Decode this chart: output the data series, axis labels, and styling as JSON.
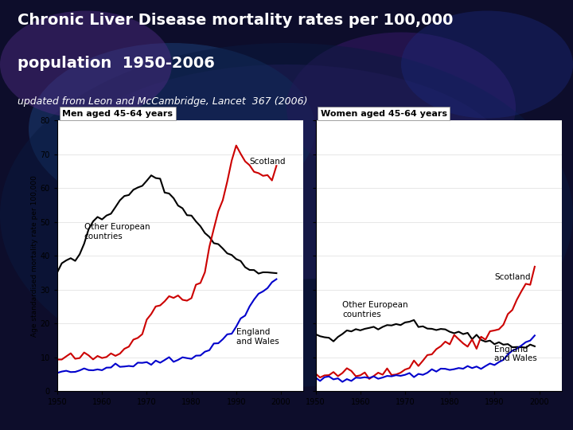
{
  "title_line1": "Chronic Liver Disease mortality rates per 100,000",
  "title_line2": "population  1950-2006",
  "subtitle": "updated from Leon and McCambridge, Lancet  367 (2006)",
  "title_color": "#ffffff",
  "subtitle_color": "#ffffff",
  "background_color": "#0d0d2b",
  "plot_bg_color": "#ffffff",
  "title_fontsize": 14,
  "subtitle_fontsize": 9,
  "panel_left_title": "Men aged 45-64 years",
  "panel_right_title": "Women aged 45-64 years",
  "ylabel": "Age standardised mortality rate per 100,000",
  "xlim": [
    1950,
    2005
  ],
  "ylim": [
    0,
    80
  ],
  "yticks": [
    0,
    10,
    20,
    30,
    40,
    50,
    60,
    70,
    80
  ],
  "xticks": [
    1950,
    1960,
    1970,
    1980,
    1990,
    2000
  ],
  "colors": {
    "scotland": "#cc0000",
    "european": "#000000",
    "england": "#0000cc"
  },
  "men_scotland": [
    9,
    9.5,
    9.8,
    10,
    9.8,
    10,
    10.2,
    10,
    9.8,
    10,
    10.2,
    10.5,
    11,
    12,
    12.5,
    13,
    14,
    15,
    16.5,
    18,
    20,
    23,
    25,
    26.5,
    27,
    28,
    28.5,
    28,
    27.5,
    27,
    28,
    30,
    32,
    36,
    42,
    49,
    53,
    58,
    63,
    68,
    72,
    70,
    68,
    67,
    66,
    65,
    64,
    63,
    62,
    68
  ],
  "men_european": [
    35,
    38,
    39,
    39,
    38,
    40,
    44,
    48,
    50,
    51,
    51,
    52,
    53,
    55,
    56,
    57,
    58,
    59,
    60,
    61,
    62,
    63,
    63,
    62,
    60,
    58,
    57,
    55,
    54,
    53,
    52,
    50,
    48,
    47,
    46,
    44,
    43,
    42,
    41,
    40,
    39,
    38,
    37,
    36,
    36,
    35.5,
    35,
    35,
    35,
    35
  ],
  "men_england": [
    6,
    6,
    6.2,
    6,
    5.8,
    6,
    6,
    6.2,
    6.1,
    6.5,
    7,
    7,
    7,
    7.2,
    7.3,
    7.2,
    7.5,
    7.8,
    8,
    8.1,
    8.3,
    8.2,
    8.5,
    9,
    9,
    9.2,
    9.1,
    9.5,
    10,
    10,
    10.2,
    10.5,
    11,
    11.5,
    12.5,
    13.5,
    14.5,
    15.5,
    16.5,
    17.5,
    19,
    21,
    23,
    25,
    27,
    28.5,
    30,
    31,
    32,
    33
  ],
  "women_scotland": [
    5,
    4.8,
    5,
    5.2,
    5,
    4.8,
    5,
    5.2,
    5,
    4.8,
    5,
    5.2,
    5,
    5.2,
    5.1,
    5,
    5.2,
    5.3,
    5.8,
    6.2,
    6.4,
    7,
    7.3,
    7.8,
    9,
    10,
    11,
    12,
    13,
    14,
    15,
    16,
    15.5,
    14,
    13.5,
    14,
    14.2,
    15,
    15.8,
    16.5,
    17,
    17.5,
    19,
    21,
    24.5,
    27.5,
    30,
    31,
    32.5,
    36
  ],
  "women_european": [
    17,
    16.8,
    16.5,
    16.2,
    15.5,
    15.8,
    16.5,
    17.5,
    18,
    18.2,
    18,
    18.1,
    18.5,
    19,
    19.2,
    19.1,
    19.5,
    19.8,
    20,
    20.2,
    20.5,
    20.3,
    20,
    19.5,
    19.2,
    19,
    18.5,
    18.2,
    18,
    17.8,
    17.5,
    17.2,
    17,
    16.8,
    16.5,
    16.2,
    15.8,
    15.5,
    15.2,
    15,
    14.5,
    14.2,
    14,
    13.8,
    13.5,
    13.2,
    13,
    13,
    13,
    13
  ],
  "women_england": [
    4,
    3.8,
    4,
    3.9,
    3.8,
    3.9,
    4,
    4.1,
    3.9,
    4,
    4,
    4.2,
    4.1,
    4,
    4.2,
    4.1,
    4.3,
    4.5,
    4.8,
    4.9,
    5,
    5.1,
    5,
    5.2,
    5.1,
    5.5,
    5.8,
    6,
    6.1,
    6.2,
    6.3,
    6.5,
    6.8,
    7,
    7.2,
    7.1,
    7.3,
    7.5,
    7.8,
    8,
    8.2,
    8.5,
    9.5,
    10.5,
    11.5,
    12.5,
    13.5,
    14.5,
    15,
    16
  ],
  "years": [
    1950,
    1951,
    1952,
    1953,
    1954,
    1955,
    1956,
    1957,
    1958,
    1959,
    1960,
    1961,
    1962,
    1963,
    1964,
    1965,
    1966,
    1967,
    1968,
    1969,
    1970,
    1971,
    1972,
    1973,
    1974,
    1975,
    1976,
    1977,
    1978,
    1979,
    1980,
    1981,
    1982,
    1983,
    1984,
    1985,
    1986,
    1987,
    1988,
    1989,
    1990,
    1991,
    1992,
    1993,
    1994,
    1995,
    1996,
    1997,
    1998,
    1999
  ]
}
